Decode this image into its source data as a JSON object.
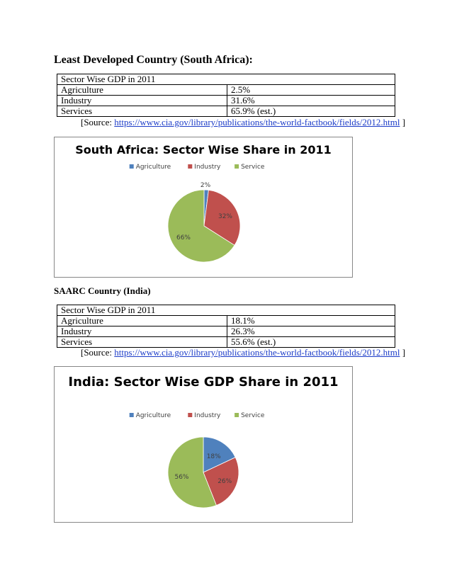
{
  "sections": [
    {
      "heading": "Least Developed Country (South Africa):",
      "table": {
        "header": "Sector Wise GDP in 2011",
        "rows": [
          {
            "sector": "Agriculture",
            "value": "2.5%"
          },
          {
            "sector": "Industry",
            "value": "31.6%"
          },
          {
            "sector": "Services",
            "value": "65.9% (est.)"
          }
        ]
      },
      "source_prefix": "[Source: ",
      "source_link": "https://www.cia.gov/library/publications/the-world-factbook/fields/2012.html",
      "source_suffix": " ]"
    },
    {
      "heading": "SAARC Country (India)",
      "table": {
        "header": "Sector Wise GDP in 2011",
        "rows": [
          {
            "sector": "Agriculture",
            "value": "18.1%"
          },
          {
            "sector": "Industry",
            "value": "26.3%"
          },
          {
            "sector": "Services",
            "value": "55.6% (est.)"
          }
        ]
      },
      "source_prefix": "[Source: ",
      "source_link": "https://www.cia.gov/library/publications/the-world-factbook/fields/2012.html",
      "source_suffix": " ]"
    }
  ],
  "chart_data": [
    {
      "type": "pie",
      "title": "South Africa: Sector Wise Share in 2011",
      "categories": [
        "Agriculture",
        "Industry",
        "Service"
      ],
      "values": [
        2,
        32,
        66
      ],
      "labels": [
        "2%",
        "32%",
        "66%"
      ],
      "colors": [
        "#4f81bd",
        "#c0504d",
        "#9bbb59"
      ],
      "legend": "top"
    },
    {
      "type": "pie",
      "title": "India: Sector Wise GDP Share in 2011",
      "categories": [
        "Agriculture",
        "Industry",
        "Service"
      ],
      "values": [
        18,
        26,
        56
      ],
      "labels": [
        "18%",
        "26%",
        "56%"
      ],
      "colors": [
        "#4f81bd",
        "#c0504d",
        "#9bbb59"
      ],
      "legend": "top"
    }
  ]
}
